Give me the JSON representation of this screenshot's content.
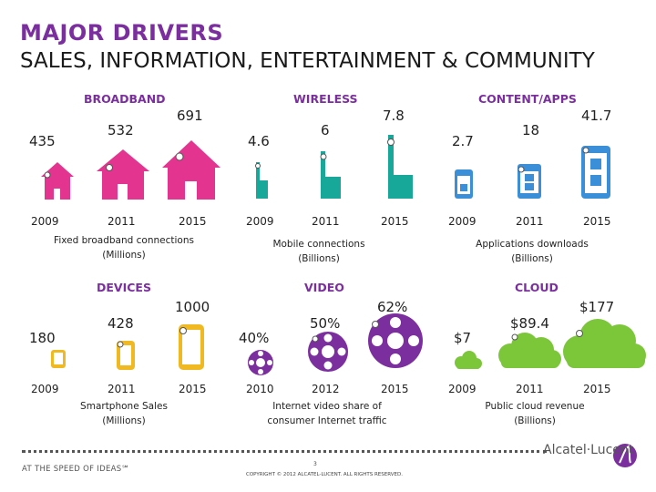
{
  "header": {
    "title": "MAJOR DRIVERS",
    "subtitle": "SALES, INFORMATION, ENTERTAINMENT & COMMUNITY"
  },
  "colors": {
    "purple": "#7b2f9e",
    "broadband": "#e3358f",
    "wireless": "#17a89a",
    "content": "#3a8fd8",
    "devices": "#f0b922",
    "video": "#7b2f9e",
    "cloud": "#7cc63a"
  },
  "sections": {
    "broadband": {
      "title": "BROADBAND",
      "values": [
        "435",
        "532",
        "691"
      ],
      "years": [
        "2009",
        "2011",
        "2015"
      ],
      "caption_line1": "Fixed broadband connections",
      "caption_line2": "(Millions)",
      "icon": "house-icon"
    },
    "wireless": {
      "title": "WIRELESS",
      "values": [
        "4.6",
        "6",
        "7.8"
      ],
      "years": [
        "2009",
        "2011",
        "2015"
      ],
      "caption_line1": "Mobile connections",
      "caption_line2": "(Billions)",
      "icon": "antenna-icon"
    },
    "content": {
      "title": "CONTENT/APPS",
      "values": [
        "2.7",
        "18",
        "41.7"
      ],
      "years": [
        "2009",
        "2011",
        "2015"
      ],
      "caption_line1": "Applications downloads",
      "caption_line2": "(Billions)",
      "icon": "app-phone-icon"
    },
    "devices": {
      "title": "DEVICES",
      "values": [
        "180",
        "428",
        "1000"
      ],
      "years": [
        "2009",
        "2011",
        "2015"
      ],
      "caption_line1": "Smartphone Sales",
      "caption_line2": "(Millions)",
      "icon": "smartphone-icon"
    },
    "video": {
      "title": "VIDEO",
      "values": [
        "40%",
        "50%",
        "62%"
      ],
      "years": [
        "2010",
        "2012",
        "2015"
      ],
      "caption_line1": "Internet video share of",
      "caption_line2": "consumer Internet traffic",
      "icon": "film-reel-icon"
    },
    "cloud": {
      "title": "CLOUD",
      "values": [
        "$7",
        "$89.4",
        "$177"
      ],
      "years": [
        "2009",
        "2011",
        "2015"
      ],
      "caption_line1": "Public cloud revenue",
      "caption_line2": "(Billions)",
      "icon": "cloud-icon"
    }
  },
  "footer": {
    "tagline": "AT THE SPEED OF IDEAS℠",
    "page": "3",
    "copyright": "COPYRIGHT © 2012 ALCATEL-LUCENT. ALL RIGHTS RESERVED.",
    "brand": "Alcatel·Lucent",
    "logo_icon": "alcatel-lucent-logo-icon"
  }
}
